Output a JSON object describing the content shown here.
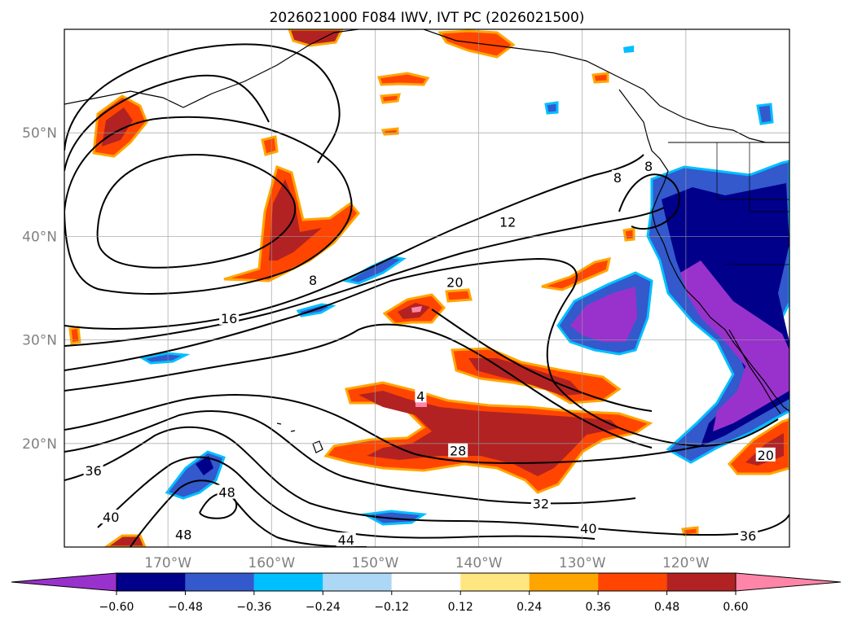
{
  "title": "2026021000 F084 IWV, IVT PC (2026021500)",
  "map": {
    "lon_range": [
      -180,
      -110
    ],
    "lat_range": [
      10,
      60
    ],
    "lon_ticks": [
      {
        "value": -170,
        "label": "170°W"
      },
      {
        "value": -160,
        "label": "160°W"
      },
      {
        "value": -150,
        "label": "150°W"
      },
      {
        "value": -140,
        "label": "140°W"
      },
      {
        "value": -130,
        "label": "130°W"
      },
      {
        "value": -120,
        "label": "120°W"
      }
    ],
    "lat_ticks": [
      {
        "value": 20,
        "label": "20°N"
      },
      {
        "value": 30,
        "label": "30°N"
      },
      {
        "value": 40,
        "label": "40°N"
      },
      {
        "value": 50,
        "label": "50°N"
      }
    ],
    "gridlines": true,
    "contour_labels": [
      {
        "text": "12",
        "lon": -137.2,
        "lat": 41.4
      },
      {
        "text": "20",
        "lon": -142.3,
        "lat": 35.6
      },
      {
        "text": "8",
        "lon": -156.0,
        "lat": 35.8
      },
      {
        "text": "16",
        "lon": -164.1,
        "lat": 32.1
      },
      {
        "text": "8",
        "lon": -126.6,
        "lat": 45.7
      },
      {
        "text": "8",
        "lon": -123.6,
        "lat": 46.8
      },
      {
        "text": "4",
        "lon": -145.6,
        "lat": 24.6
      },
      {
        "text": "28",
        "lon": -142.0,
        "lat": 19.3
      },
      {
        "text": "36",
        "lon": -177.2,
        "lat": 17.4
      },
      {
        "text": "48",
        "lon": -164.3,
        "lat": 15.3
      },
      {
        "text": "40",
        "lon": -175.5,
        "lat": 12.9
      },
      {
        "text": "48",
        "lon": -168.5,
        "lat": 11.2
      },
      {
        "text": "44",
        "lon": -152.8,
        "lat": 10.7
      },
      {
        "text": "32",
        "lon": -134.0,
        "lat": 14.2
      },
      {
        "text": "40",
        "lon": -129.4,
        "lat": 11.8
      },
      {
        "text": "36",
        "lon": -114.0,
        "lat": 11.1
      },
      {
        "text": "20",
        "lon": -112.3,
        "lat": 18.9
      }
    ]
  },
  "colorbar": {
    "ticks": [
      "−0.60",
      "−0.48",
      "−0.36",
      "−0.24",
      "−0.12",
      "0.12",
      "0.24",
      "0.36",
      "0.48",
      "0.60"
    ],
    "colors": {
      "purple": "#9932cc",
      "navy": "#00008b",
      "royal": "#3359cc",
      "sky": "#00bfff",
      "pale_blue": "#add8f5",
      "white": "#ffffff",
      "pale_yellow": "#ffe680",
      "orange": "#ffa500",
      "red_orange": "#ff4500",
      "dark_red": "#b22222",
      "pink": "#ff85a8"
    }
  }
}
